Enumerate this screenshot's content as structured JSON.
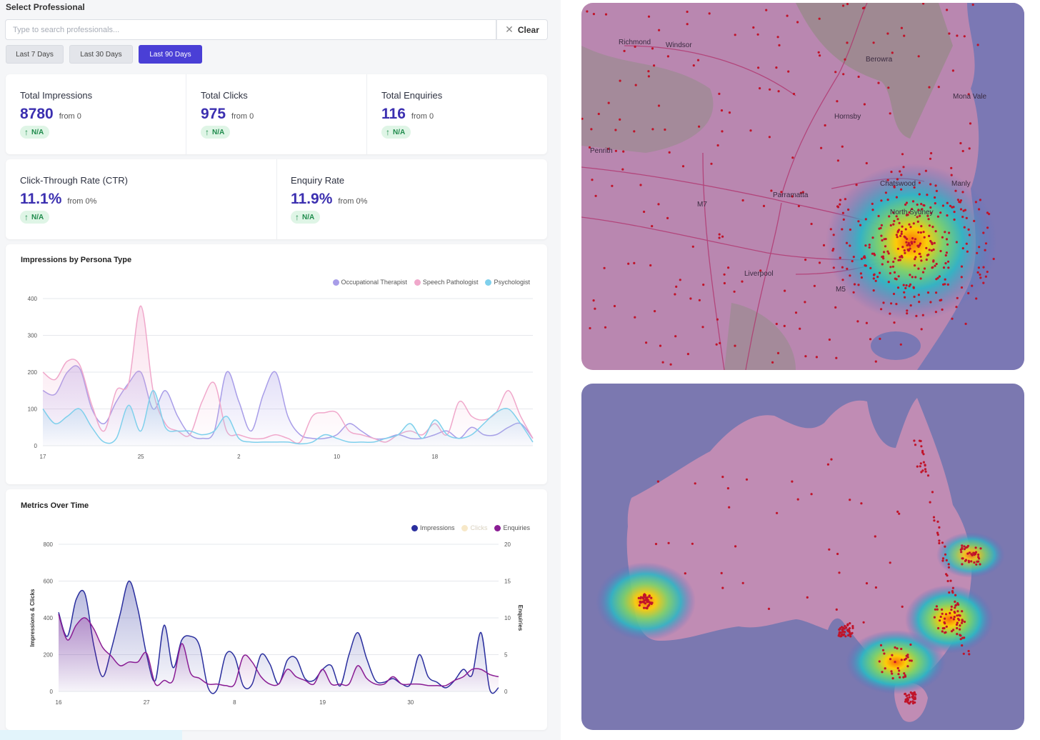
{
  "filters": {
    "title": "Select Professional",
    "search_placeholder": "Type to search professionals...",
    "clear_label": "Clear",
    "ranges": [
      "Last 7 Days",
      "Last 30 Days",
      "Last 90 Days"
    ],
    "active_range": "Last 90 Days"
  },
  "stats": [
    {
      "label": "Total Impressions",
      "value": "8780",
      "from": "from 0",
      "change": "N/A"
    },
    {
      "label": "Total Clicks",
      "value": "975",
      "from": "from 0",
      "change": "N/A"
    },
    {
      "label": "Total Enquiries",
      "value": "116",
      "from": "from 0",
      "change": "N/A"
    },
    {
      "label": "Click-Through Rate (CTR)",
      "value": "11.1%",
      "from": "from 0%",
      "change": "N/A"
    },
    {
      "label": "Enquiry Rate",
      "value": "11.9%",
      "from": "from 0%",
      "change": "N/A"
    }
  ],
  "colors": {
    "accent": "#4a3fd6",
    "value_text": "#3b2fb0",
    "badge_bg": "#dff5e6",
    "badge_text": "#1f8b4c",
    "map_water": "#7a7ab4",
    "map_land": "#c08cb4",
    "map_points": "#c0142a"
  },
  "chart_data": [
    {
      "type": "area",
      "title": "Impressions by Persona Type",
      "legend_position": "top-right",
      "grid": true,
      "ylim": [
        0,
        400
      ],
      "yticks": [
        "0",
        "100",
        "200",
        "300",
        "400"
      ],
      "xticks": [
        "17",
        "25",
        "2",
        "10",
        "18"
      ],
      "x_count": 41,
      "series": [
        {
          "name": "Occupational Therapist",
          "color": "#a89de8",
          "values": [
            150,
            140,
            200,
            210,
            100,
            60,
            120,
            170,
            200,
            100,
            150,
            80,
            30,
            20,
            40,
            200,
            120,
            40,
            140,
            200,
            80,
            30,
            20,
            20,
            30,
            60,
            40,
            20,
            20,
            30,
            20,
            20,
            30,
            40,
            20,
            50,
            30,
            30,
            50,
            60,
            20
          ]
        },
        {
          "name": "Speech Pathologist",
          "color": "#f0a8cb",
          "values": [
            200,
            180,
            230,
            220,
            110,
            40,
            150,
            170,
            380,
            150,
            60,
            40,
            30,
            120,
            170,
            40,
            30,
            20,
            20,
            30,
            20,
            10,
            80,
            90,
            90,
            40,
            30,
            20,
            10,
            30,
            40,
            30,
            60,
            30,
            120,
            80,
            70,
            90,
            150,
            80,
            20
          ]
        },
        {
          "name": "Psychologist",
          "color": "#7fd0ec",
          "values": [
            100,
            60,
            80,
            100,
            50,
            10,
            20,
            110,
            40,
            150,
            50,
            40,
            40,
            30,
            40,
            80,
            20,
            10,
            10,
            10,
            10,
            5,
            10,
            30,
            20,
            10,
            10,
            10,
            20,
            30,
            60,
            20,
            70,
            30,
            20,
            30,
            60,
            90,
            100,
            60,
            10
          ]
        }
      ]
    },
    {
      "type": "line",
      "title": "Metrics Over Time",
      "legend_position": "top-right",
      "grid": true,
      "ylabel": "Impressions & Clicks",
      "y2label": "Enquiries",
      "ylim": [
        0,
        800
      ],
      "y2lim": [
        0,
        20
      ],
      "yticks": [
        "0",
        "200",
        "400",
        "600",
        "800"
      ],
      "y2ticks": [
        "0",
        "5",
        "10",
        "15",
        "20"
      ],
      "xticks": [
        "16",
        "27",
        "8",
        "19",
        "30"
      ],
      "x_count": 51,
      "series": [
        {
          "name": "Impressions",
          "color": "#2a2f9e",
          "axis": "left",
          "values": [
            430,
            300,
            500,
            530,
            250,
            80,
            230,
            420,
            600,
            450,
            200,
            60,
            360,
            130,
            280,
            300,
            250,
            20,
            10,
            200,
            190,
            30,
            40,
            200,
            150,
            40,
            170,
            180,
            70,
            60,
            120,
            140,
            30,
            200,
            320,
            180,
            60,
            50,
            70,
            40,
            40,
            200,
            80,
            50,
            20,
            60,
            120,
            90,
            320,
            10,
            20
          ]
        },
        {
          "name": "Clicks",
          "color": "#f7e8c8",
          "axis": "left",
          "values": []
        },
        {
          "name": "Enquiries",
          "color": "#8a1d94",
          "axis": "right",
          "values": [
            10.5,
            7,
            9,
            10,
            8.5,
            6,
            4.8,
            3.5,
            4,
            4,
            5.2,
            1,
            1.5,
            1.5,
            6.5,
            2.5,
            1.8,
            1,
            1,
            0.8,
            1,
            4.8,
            4,
            2,
            1,
            1,
            3,
            2,
            1.5,
            1,
            3,
            1,
            1,
            1,
            3.5,
            1.8,
            1,
            1,
            2,
            1,
            1,
            1,
            0.8,
            0.8,
            0.8,
            1.5,
            2,
            3,
            3,
            2.3,
            2
          ]
        }
      ]
    }
  ],
  "maps": [
    {
      "name": "sydney-heatmap",
      "labels": [
        "Richmond",
        "Windsor",
        "Hornsby",
        "Penrith",
        "Parramatta",
        "Chatswood",
        "North Sydney",
        "Manly",
        "Mona Vale",
        "Liverpool",
        "M7",
        "M5",
        "Berowra"
      ]
    },
    {
      "name": "australia-heatmap",
      "labels": []
    }
  ]
}
